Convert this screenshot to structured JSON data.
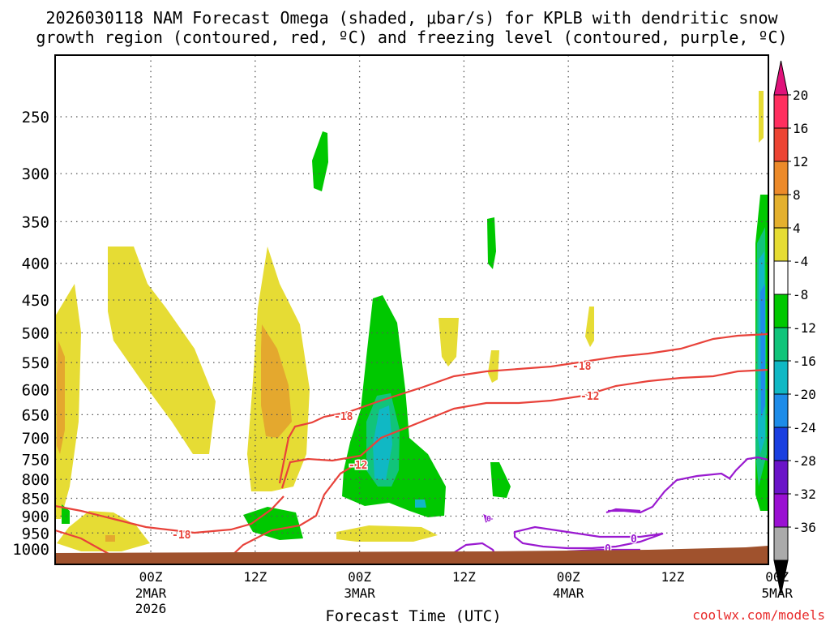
{
  "title": {
    "line1": "2026030118 NAM Forecast Omega (shaded, μbar/s) for KPLB with dendritic snow",
    "line2": "growth region (contoured, red, ºC) and freezing level (contoured, purple, ºC)"
  },
  "chart_data": {
    "type": "heatmap",
    "title": "2026030118 NAM Forecast Omega (shaded, μbar/s) for KPLB with dendritic snow growth region (contoured, red, ºC) and freezing level (contoured, purple, ºC)",
    "xlabel": "Forecast Time (UTC)",
    "ylabel": "",
    "y_axis": {
      "scale": "log",
      "range_mb": [
        1000,
        200
      ],
      "ticks": [
        250,
        300,
        350,
        400,
        450,
        500,
        550,
        600,
        650,
        700,
        750,
        800,
        850,
        900,
        950,
        1000
      ]
    },
    "x_axis": {
      "range_hours": [
        -5,
        77
      ],
      "ticks": [
        {
          "hour": 6,
          "label": "00Z",
          "sub1": "2MAR",
          "sub2": "2026"
        },
        {
          "hour": 18,
          "label": "12Z",
          "sub1": "",
          "sub2": ""
        },
        {
          "hour": 30,
          "label": "00Z",
          "sub1": "3MAR",
          "sub2": ""
        },
        {
          "hour": 42,
          "label": "12Z",
          "sub1": "",
          "sub2": ""
        },
        {
          "hour": 54,
          "label": "00Z",
          "sub1": "4MAR",
          "sub2": ""
        },
        {
          "hour": 66,
          "label": "12Z",
          "sub1": "",
          "sub2": ""
        },
        {
          "hour": 78,
          "label": "00Z",
          "sub1": "5MAR",
          "sub2": ""
        }
      ]
    },
    "colorbar": {
      "levels": [
        20,
        16,
        12,
        8,
        4,
        -4,
        -8,
        -12,
        -16,
        -20,
        -24,
        -28,
        -32,
        -36
      ],
      "colors": [
        "#ff2f5f",
        "#ec4433",
        "#ec8a2a",
        "#e4b02e",
        "#e6dc34",
        "#ffffff",
        "#00c800",
        "#11c47a",
        "#10b8c4",
        "#1e8ce8",
        "#1a3fe0",
        "#6a14c8",
        "#9a10d2",
        "#aaaaaa"
      ],
      "over_color": "#e0127a",
      "under_color": "#000000"
    },
    "contours": {
      "dendritic_snow_growth": {
        "color": "#e8423a",
        "levels": [
          -12,
          -18
        ]
      },
      "freezing_level": {
        "color": "#9a1ad0",
        "levels": [
          0
        ]
      }
    },
    "contour_labels": [
      "-18",
      "-12",
      "-18",
      "-12",
      "-18",
      "-12",
      "0",
      "0",
      "0"
    ]
  },
  "branding": "coolwx.com/models"
}
